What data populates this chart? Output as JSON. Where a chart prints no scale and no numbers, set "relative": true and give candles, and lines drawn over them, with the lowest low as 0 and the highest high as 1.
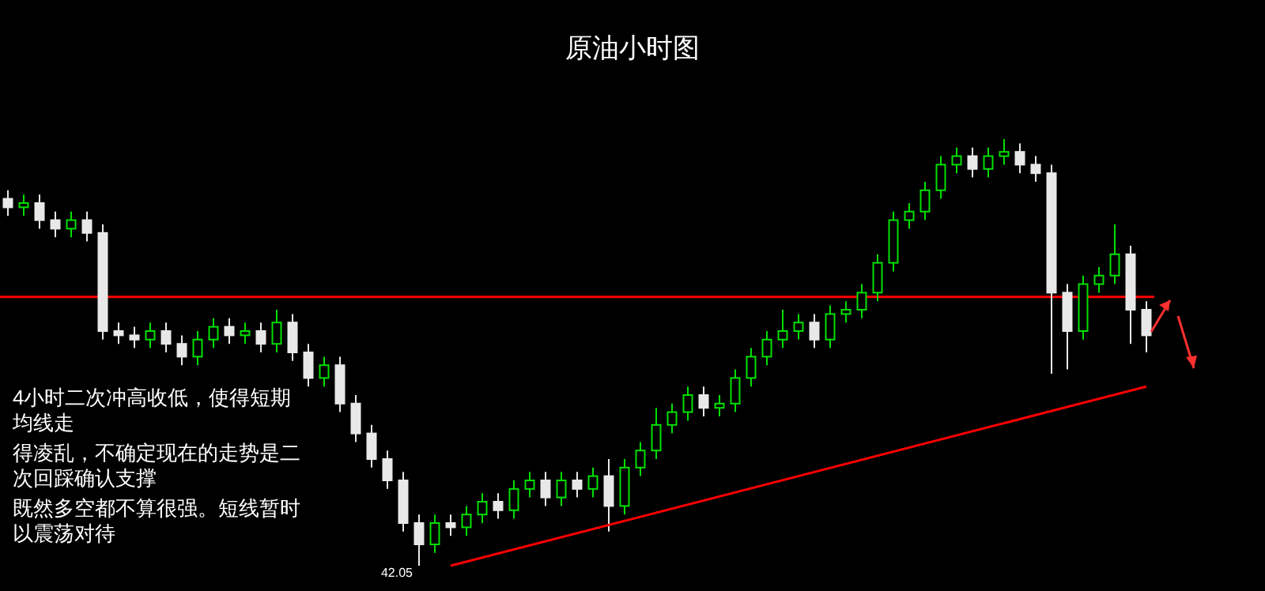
{
  "chart_data": {
    "type": "candlestick",
    "title": "原油小时图",
    "relative": true,
    "categories": [
      null,
      null,
      null,
      null,
      null,
      null,
      null,
      null,
      null,
      null,
      null,
      null,
      null,
      null,
      null,
      null,
      null,
      null,
      null,
      null,
      null,
      null,
      null,
      null,
      null,
      null,
      null,
      null,
      null,
      null,
      null,
      null,
      null,
      null,
      null,
      null,
      null,
      null,
      null,
      null,
      null,
      null,
      null,
      null,
      null,
      null,
      null,
      null,
      null,
      null,
      null,
      null,
      null,
      null,
      null,
      null,
      null,
      null,
      null,
      null,
      null,
      null,
      null,
      null,
      null,
      null,
      null,
      null,
      null,
      null,
      null,
      null,
      null
    ],
    "ohlc": [
      [
        0.86,
        0.88,
        0.82,
        0.84
      ],
      [
        0.84,
        0.87,
        0.82,
        0.85
      ],
      [
        0.85,
        0.87,
        0.79,
        0.81
      ],
      [
        0.81,
        0.83,
        0.77,
        0.79
      ],
      [
        0.79,
        0.83,
        0.77,
        0.81
      ],
      [
        0.81,
        0.83,
        0.76,
        0.78
      ],
      [
        0.78,
        0.8,
        0.53,
        0.55
      ],
      [
        0.55,
        0.57,
        0.52,
        0.54
      ],
      [
        0.54,
        0.56,
        0.51,
        0.53
      ],
      [
        0.53,
        0.57,
        0.51,
        0.55
      ],
      [
        0.55,
        0.57,
        0.5,
        0.52
      ],
      [
        0.52,
        0.54,
        0.47,
        0.49
      ],
      [
        0.49,
        0.55,
        0.47,
        0.53
      ],
      [
        0.53,
        0.58,
        0.51,
        0.56
      ],
      [
        0.56,
        0.58,
        0.52,
        0.54
      ],
      [
        0.54,
        0.57,
        0.52,
        0.55
      ],
      [
        0.55,
        0.57,
        0.5,
        0.52
      ],
      [
        0.52,
        0.6,
        0.5,
        0.57
      ],
      [
        0.57,
        0.59,
        0.48,
        0.5
      ],
      [
        0.5,
        0.52,
        0.42,
        0.44
      ],
      [
        0.44,
        0.49,
        0.42,
        0.47
      ],
      [
        0.47,
        0.49,
        0.36,
        0.38
      ],
      [
        0.38,
        0.4,
        0.29,
        0.31
      ],
      [
        0.31,
        0.33,
        0.23,
        0.25
      ],
      [
        0.25,
        0.27,
        0.18,
        0.2
      ],
      [
        0.2,
        0.22,
        0.08,
        0.1
      ],
      [
        0.1,
        0.12,
        0,
        0.05
      ],
      [
        0.05,
        0.12,
        0.03,
        0.1
      ],
      [
        0.1,
        0.12,
        0.07,
        0.09
      ],
      [
        0.09,
        0.14,
        0.07,
        0.12
      ],
      [
        0.12,
        0.17,
        0.1,
        0.15
      ],
      [
        0.15,
        0.17,
        0.11,
        0.13
      ],
      [
        0.13,
        0.2,
        0.11,
        0.18
      ],
      [
        0.18,
        0.22,
        0.16,
        0.2
      ],
      [
        0.2,
        0.22,
        0.14,
        0.16
      ],
      [
        0.16,
        0.22,
        0.14,
        0.2
      ],
      [
        0.2,
        0.22,
        0.16,
        0.18
      ],
      [
        0.18,
        0.23,
        0.16,
        0.21
      ],
      [
        0.21,
        0.25,
        0.08,
        0.14
      ],
      [
        0.14,
        0.25,
        0.12,
        0.23
      ],
      [
        0.23,
        0.29,
        0.21,
        0.27
      ],
      [
        0.27,
        0.37,
        0.25,
        0.33
      ],
      [
        0.33,
        0.38,
        0.31,
        0.36
      ],
      [
        0.36,
        0.42,
        0.34,
        0.4
      ],
      [
        0.4,
        0.42,
        0.35,
        0.37
      ],
      [
        0.37,
        0.4,
        0.35,
        0.38
      ],
      [
        0.38,
        0.46,
        0.36,
        0.44
      ],
      [
        0.44,
        0.51,
        0.42,
        0.49
      ],
      [
        0.49,
        0.55,
        0.47,
        0.53
      ],
      [
        0.53,
        0.6,
        0.51,
        0.55
      ],
      [
        0.55,
        0.59,
        0.53,
        0.57
      ],
      [
        0.57,
        0.59,
        0.51,
        0.53
      ],
      [
        0.53,
        0.61,
        0.51,
        0.59
      ],
      [
        0.59,
        0.62,
        0.57,
        0.6
      ],
      [
        0.6,
        0.66,
        0.58,
        0.64
      ],
      [
        0.64,
        0.73,
        0.62,
        0.71
      ],
      [
        0.71,
        0.83,
        0.69,
        0.81
      ],
      [
        0.81,
        0.85,
        0.79,
        0.83
      ],
      [
        0.83,
        0.9,
        0.81,
        0.88
      ],
      [
        0.88,
        0.96,
        0.86,
        0.94
      ],
      [
        0.94,
        0.98,
        0.92,
        0.96
      ],
      [
        0.96,
        0.98,
        0.91,
        0.93
      ],
      [
        0.93,
        0.98,
        0.91,
        0.96
      ],
      [
        0.96,
        1,
        0.94,
        0.97
      ],
      [
        0.97,
        0.99,
        0.92,
        0.94
      ],
      [
        0.94,
        0.96,
        0.9,
        0.92
      ],
      [
        0.92,
        0.94,
        0.45,
        0.64
      ],
      [
        0.64,
        0.66,
        0.46,
        0.55
      ],
      [
        0.55,
        0.68,
        0.53,
        0.66
      ],
      [
        0.66,
        0.7,
        0.64,
        0.68
      ],
      [
        0.68,
        0.8,
        0.66,
        0.73
      ],
      [
        0.73,
        0.75,
        0.52,
        0.6
      ],
      [
        0.6,
        0.62,
        0.5,
        0.54
      ]
    ],
    "series": [
      {
        "type": "line",
        "color": "#ff0000",
        "values": [
          null,
          null,
          null,
          null,
          null,
          null,
          null,
          null,
          null,
          null,
          null,
          null,
          null,
          null,
          null,
          null,
          null,
          null,
          null,
          null,
          null,
          null,
          null,
          null,
          null,
          null,
          null,
          null,
          0,
          null,
          null,
          null,
          null,
          null,
          null,
          null,
          null,
          null,
          null,
          null,
          null,
          null,
          null,
          null,
          null,
          null,
          null,
          null,
          null,
          null,
          null,
          null,
          null,
          null,
          null,
          null,
          null,
          null,
          null,
          null,
          null,
          null,
          null,
          null,
          null,
          null,
          null,
          null,
          null,
          null,
          null,
          null,
          0.42
        ]
      }
    ],
    "ref_lines": [
      {
        "axis": "y",
        "value": 0.63,
        "color": "#ff0000"
      }
    ],
    "annotations": [
      "4小时二次冲高收低，使得短期均线走",
      "得凌乱，不确定现在的走势是二次回踩确认支撑",
      "既然多空都不算很强。短线暂时以震荡对待",
      "42.05"
    ]
  }
}
